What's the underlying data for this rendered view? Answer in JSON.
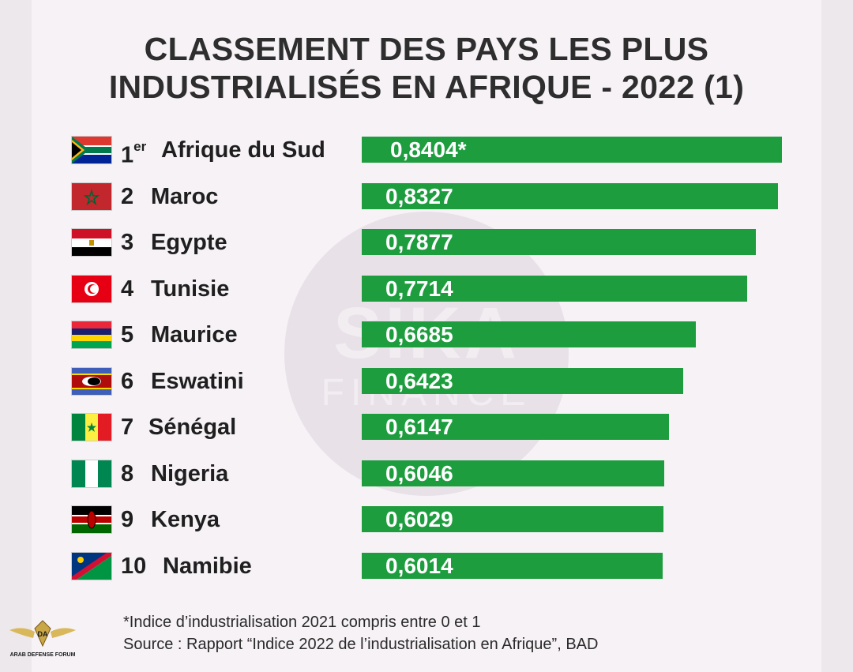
{
  "chart_data": {
    "type": "bar",
    "title_line1": "CLASSEMENT DES PAYS LES PLUS",
    "title_line2": "INDUSTRIALISÉS EN AFRIQUE - 2022 (1)",
    "xlim": [
      0,
      0.8404
    ],
    "rows": [
      {
        "rank": "1",
        "rank_sup": "er",
        "country": "Afrique du Sud",
        "value": 0.8404,
        "label": "0,8404*",
        "flag": "south-africa-flag-icon"
      },
      {
        "rank": "2",
        "rank_sup": "",
        "country": "Maroc",
        "value": 0.8327,
        "label": "0,8327",
        "flag": "morocco-flag-icon"
      },
      {
        "rank": "3",
        "rank_sup": "",
        "country": "Egypte",
        "value": 0.7877,
        "label": "0,7877",
        "flag": "egypt-flag-icon"
      },
      {
        "rank": "4",
        "rank_sup": "",
        "country": "Tunisie",
        "value": 0.7714,
        "label": "0,7714",
        "flag": "tunisia-flag-icon"
      },
      {
        "rank": "5",
        "rank_sup": "",
        "country": "Maurice",
        "value": 0.6685,
        "label": "0,6685",
        "flag": "mauritius-flag-icon"
      },
      {
        "rank": "6",
        "rank_sup": "",
        "country": "Eswatini",
        "value": 0.6423,
        "label": "0,6423",
        "flag": "eswatini-flag-icon"
      },
      {
        "rank": "7",
        "rank_sup": "",
        "country": "Sénégal",
        "value": 0.6147,
        "label": "0,6147",
        "flag": "senegal-flag-icon"
      },
      {
        "rank": "8",
        "rank_sup": "",
        "country": "Nigeria",
        "value": 0.6046,
        "label": "0,6046",
        "flag": "nigeria-flag-icon"
      },
      {
        "rank": "9",
        "rank_sup": "",
        "country": "Kenya",
        "value": 0.6029,
        "label": "0,6029",
        "flag": "kenya-flag-icon"
      },
      {
        "rank": "10",
        "rank_sup": "",
        "country": "Namibie",
        "value": 0.6014,
        "label": "0,6014",
        "flag": "namibia-flag-icon"
      }
    ],
    "bar_color": "#1d9d3e"
  },
  "watermark": {
    "line1": "SIKA",
    "line2": "FINANCE"
  },
  "footnote_1": "*Indice d’industrialisation 2021 compris entre 0 et 1",
  "footnote_2": "Source : Rapport “Indice 2022 de l’industrialisation en Afrique”, BAD",
  "logo": {
    "text": "ARAB DEFENSE FORUM",
    "icon": "eagle-logo-icon"
  }
}
